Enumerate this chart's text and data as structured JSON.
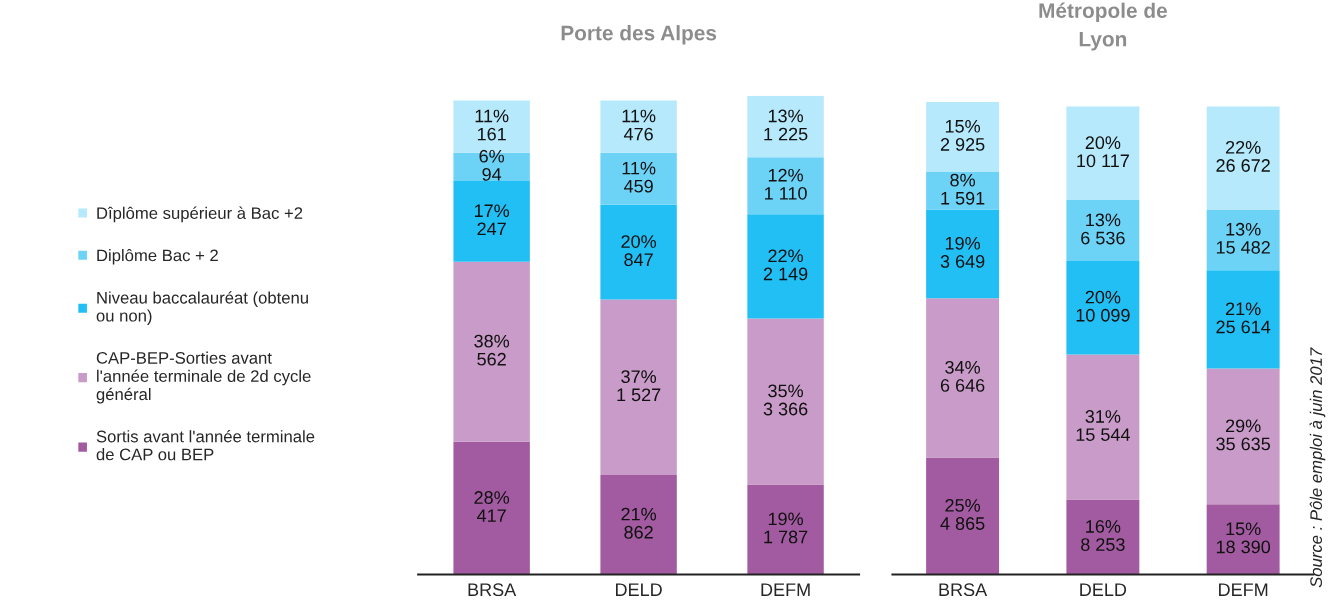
{
  "chart_data": [
    {
      "type": "bar",
      "title": "Porte des Alpes",
      "stacked": true,
      "legend": "left",
      "categories": [
        "BRSA",
        "DELD",
        "DEFM"
      ],
      "series": [
        {
          "name": "Sortis avant l'année terminale\nde CAP ou BEP",
          "color": "#a25ba0",
          "values": [
            28,
            21,
            19
          ],
          "value_labels": [
            "28%\n417",
            "21%\n862",
            "19%\n1 787"
          ]
        },
        {
          "name": "CAP-BEP-Sorties avant\nl'année terminale de 2d cycle\ngénéral",
          "color": "#c99bc8",
          "values": [
            38,
            37,
            35
          ],
          "value_labels": [
            "38%\n562",
            "37%\n1 527",
            "35%\n3 366"
          ]
        },
        {
          "name": "Niveau baccalauréat (obtenu\nou non)",
          "color": "#22bff5",
          "values": [
            17,
            20,
            22
          ],
          "value_labels": [
            "17%\n247",
            "20%\n847",
            "22%\n2 149"
          ]
        },
        {
          "name": "Diplôme Bac + 2",
          "color": "#6cd3f7",
          "values": [
            6,
            11,
            12
          ],
          "value_labels": [
            "6%\n94",
            "11%\n459",
            "12%\n1 110"
          ]
        },
        {
          "name": "Dîplôme supérieur à Bac +2",
          "color": "#b5e9fb",
          "values": [
            11,
            11,
            13
          ],
          "value_labels": [
            "11%\n161",
            "11%\n476",
            "13%\n1 225"
          ]
        }
      ]
    },
    {
      "type": "bar",
      "title": "Métropole de\nLyon",
      "stacked": true,
      "categories": [
        "BRSA",
        "DELD",
        "DEFM"
      ],
      "annotations": [
        "Source : Pôle emploi à juin 2017"
      ],
      "series": [
        {
          "color": "#a25ba0",
          "values": [
            25,
            16,
            15
          ],
          "value_labels": [
            "25%\n4 865",
            "16%\n8 253",
            "15%\n18 390"
          ]
        },
        {
          "color": "#c99bc8",
          "values": [
            34,
            31,
            29
          ],
          "value_labels": [
            "34%\n6 646",
            "31%\n15 544",
            "29%\n35 635"
          ]
        },
        {
          "color": "#22bff5",
          "values": [
            19,
            20,
            21
          ],
          "value_labels": [
            "19%\n3 649",
            "20%\n10 099",
            "21%\n25 614"
          ]
        },
        {
          "color": "#6cd3f7",
          "values": [
            8,
            13,
            13
          ],
          "value_labels": [
            "8%\n1 591",
            "13%\n6 536",
            "13%\n15 482"
          ]
        },
        {
          "color": "#b5e9fb",
          "values": [
            15,
            20,
            22
          ],
          "value_labels": [
            "15%\n2 925",
            "20%\n10 117",
            "22%\n26 672"
          ]
        }
      ]
    }
  ]
}
